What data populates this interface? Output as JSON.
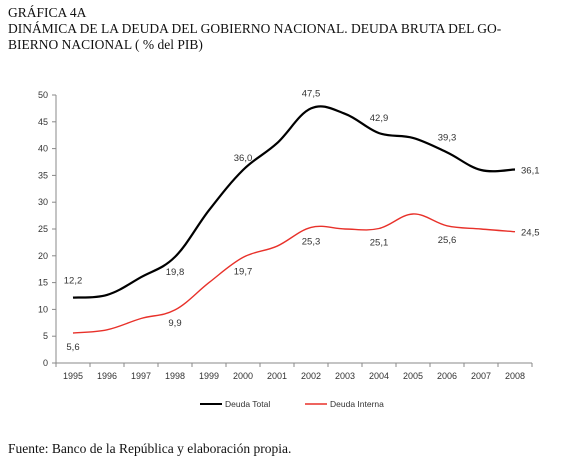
{
  "header": {
    "label": "GRÁFICA 4A",
    "title_line1": "DINÁMICA DE LA DEUDA DEL GOBIERNO NACIONAL. DEUDA BRUTA DEL GO-",
    "title_line2": "BIERNO NACIONAL ( % del PIB)"
  },
  "footer": {
    "source": "Fuente: Banco de la República y elaboración propia."
  },
  "chart_data": {
    "type": "line",
    "title": "",
    "xlabel": "",
    "ylabel": "",
    "ylim": [
      0,
      50
    ],
    "yticks": [
      0,
      5,
      10,
      15,
      20,
      25,
      30,
      35,
      40,
      45,
      50
    ],
    "categories": [
      "1995",
      "1996",
      "1997",
      "1998",
      "1999",
      "2000",
      "2001",
      "2002",
      "2003",
      "2004",
      "2005",
      "2006",
      "2007",
      "2008"
    ],
    "grid": false,
    "legend_position": "bottom",
    "series": [
      {
        "name": "Deuda Total",
        "color": "#000000",
        "values": [
          12.2,
          12.7,
          16.0,
          19.8,
          28.5,
          36.0,
          41.0,
          47.5,
          46.5,
          42.9,
          42.0,
          39.3,
          36.0,
          36.1
        ],
        "labels": [
          {
            "index": 0,
            "text": "12,2"
          },
          {
            "index": 3,
            "text": "19,8"
          },
          {
            "index": 5,
            "text": "36,0"
          },
          {
            "index": 7,
            "text": "47,5"
          },
          {
            "index": 9,
            "text": "42,9"
          },
          {
            "index": 11,
            "text": "39,3"
          },
          {
            "index": 13,
            "text": "36,1"
          }
        ]
      },
      {
        "name": "Deuda Interna",
        "color": "#e8312a",
        "values": [
          5.6,
          6.2,
          8.3,
          9.9,
          15.0,
          19.7,
          21.8,
          25.3,
          25.0,
          25.1,
          27.8,
          25.6,
          25.0,
          24.5
        ],
        "labels": [
          {
            "index": 0,
            "text": "5,6"
          },
          {
            "index": 3,
            "text": "9,9"
          },
          {
            "index": 5,
            "text": "19,7"
          },
          {
            "index": 7,
            "text": "25,3"
          },
          {
            "index": 9,
            "text": "25,1"
          },
          {
            "index": 11,
            "text": "25,6"
          },
          {
            "index": 13,
            "text": "24,5"
          }
        ]
      }
    ]
  }
}
